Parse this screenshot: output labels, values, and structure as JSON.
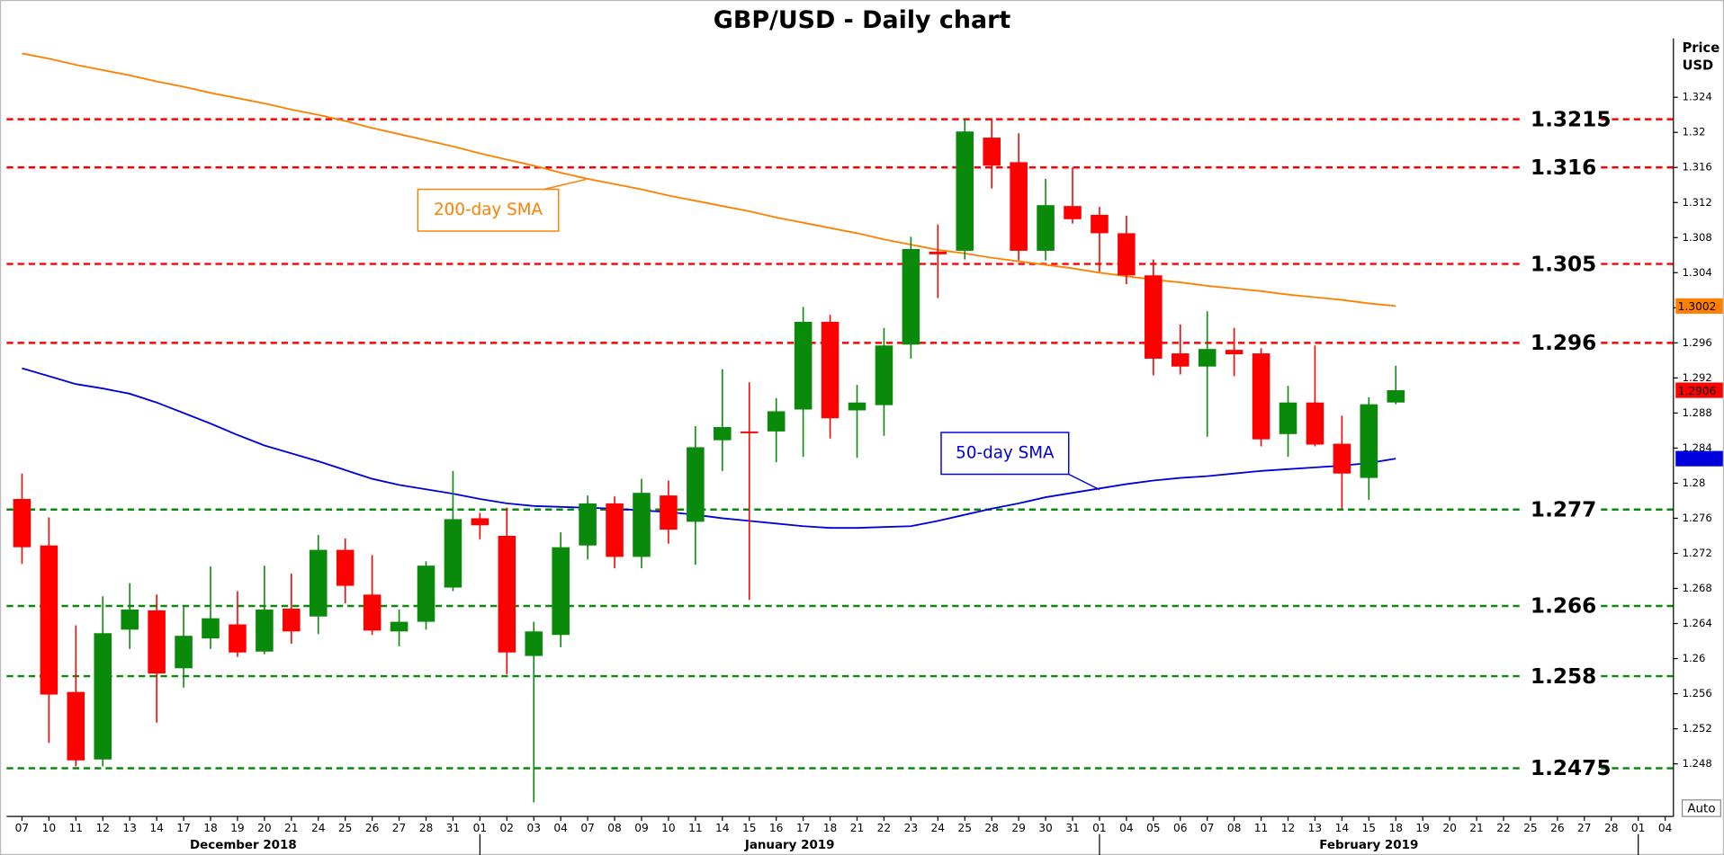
{
  "chart_data": {
    "type": "candlestick",
    "title": "GBP/USD - Daily chart",
    "ylabel": [
      "Price",
      "USD"
    ],
    "categories": [
      "07",
      "10",
      "11",
      "12",
      "13",
      "14",
      "17",
      "18",
      "19",
      "20",
      "21",
      "24",
      "25",
      "26",
      "27",
      "28",
      "31",
      "01",
      "02",
      "03",
      "04",
      "07",
      "08",
      "09",
      "10",
      "11",
      "14",
      "15",
      "16",
      "17",
      "18",
      "21",
      "22",
      "23",
      "24",
      "25",
      "28",
      "29",
      "30",
      "31",
      "01",
      "04",
      "05",
      "06",
      "07",
      "08",
      "11",
      "12",
      "13",
      "14",
      "15",
      "18",
      "19",
      "20",
      "21",
      "22",
      "25",
      "26",
      "27",
      "28",
      "01",
      "04"
    ],
    "months": [
      "December 2018",
      "January 2019",
      "February 2019"
    ],
    "open": [
      1.2782,
      1.2729,
      1.2562,
      1.2485,
      1.2633,
      1.2655,
      1.2589,
      1.2623,
      1.2639,
      1.2608,
      1.2657,
      1.2648,
      1.2724,
      1.2673,
      1.2631,
      1.2642,
      1.2681,
      1.276,
      1.274,
      1.2603,
      1.2627,
      1.2729,
      1.2777,
      1.2716,
      1.2786,
      1.2756,
      1.2849,
      1.2859,
      1.2859,
      1.2884,
      1.2984,
      1.2883,
      1.2889,
      1.2958,
      1.3064,
      1.3065,
      1.3194,
      1.3166,
      1.3065,
      1.3116,
      1.3106,
      1.3085,
      1.3037,
      1.2948,
      1.2933,
      1.2952,
      1.2948,
      1.2856,
      1.2892,
      1.2845,
      1.2806,
      1.2892,
      null,
      null,
      null,
      null,
      null,
      null,
      null,
      null,
      null,
      null
    ],
    "high": [
      1.2811,
      1.2761,
      1.2638,
      1.2671,
      1.2686,
      1.2673,
      1.2661,
      1.2705,
      1.2677,
      1.2706,
      1.2697,
      1.2741,
      1.2737,
      1.2718,
      1.2656,
      1.2711,
      1.2814,
      1.2766,
      1.2772,
      1.2642,
      1.2744,
      1.2786,
      1.2785,
      1.2805,
      1.2803,
      1.2865,
      1.293,
      1.2915,
      1.2897,
      1.3001,
      1.2992,
      1.2912,
      1.2977,
      1.3081,
      1.3095,
      1.3216,
      1.3216,
      1.3199,
      1.3147,
      1.316,
      1.3115,
      1.3105,
      1.3055,
      1.2981,
      1.2996,
      1.2977,
      1.2954,
      1.2911,
      1.2957,
      1.2877,
      1.2898,
      1.2934,
      null,
      null,
      null,
      null,
      null,
      null,
      null,
      null,
      null,
      null
    ],
    "low": [
      1.2708,
      1.2504,
      1.2477,
      1.2477,
      1.2611,
      1.2527,
      1.2567,
      1.2611,
      1.2602,
      1.2605,
      1.2617,
      1.2628,
      1.2663,
      1.2627,
      1.2614,
      1.2633,
      1.2677,
      1.2736,
      1.2582,
      1.2436,
      1.2613,
      1.2713,
      1.2703,
      1.2703,
      1.2731,
      1.2707,
      1.2814,
      1.2667,
      1.2824,
      1.283,
      1.2851,
      1.2829,
      1.2854,
      1.2942,
      1.3011,
      1.3055,
      1.3136,
      1.3054,
      1.3054,
      1.3096,
      1.3041,
      1.3027,
      1.2923,
      1.2924,
      1.2853,
      1.2922,
      1.2842,
      1.283,
      1.2842,
      1.2771,
      1.2781,
      1.289,
      null,
      null,
      null,
      null,
      null,
      null,
      null,
      null,
      null,
      null
    ],
    "close": [
      1.2727,
      1.2559,
      1.2484,
      1.2629,
      1.2656,
      1.2583,
      1.2626,
      1.2646,
      1.2607,
      1.2656,
      1.2631,
      1.2724,
      1.2683,
      1.2632,
      1.2642,
      1.2706,
      1.2759,
      1.2752,
      1.2607,
      1.2631,
      1.2727,
      1.2777,
      1.2716,
      1.2789,
      1.2747,
      1.2841,
      1.2864,
      1.2857,
      1.2882,
      1.2984,
      1.2874,
      1.2892,
      1.2957,
      1.3067,
      1.3061,
      1.3201,
      1.3162,
      1.3065,
      1.3117,
      1.3101,
      1.3085,
      1.3037,
      1.2942,
      1.2933,
      1.2953,
      1.2947,
      1.285,
      1.2892,
      1.2844,
      1.2811,
      1.289,
      1.2906,
      null,
      null,
      null,
      null,
      null,
      null,
      null,
      null,
      null,
      null
    ],
    "up_color": "#0a8a0a",
    "down_color": "#ff0000",
    "lines": [
      {
        "name": "200-day SMA",
        "color": "#ff8000",
        "values": [
          1.329,
          1.3284,
          1.3277,
          1.3271,
          1.3265,
          1.3258,
          1.3252,
          1.3245,
          1.3239,
          1.3233,
          1.3226,
          1.322,
          1.3213,
          1.3205,
          1.3198,
          1.3191,
          1.3184,
          1.3176,
          1.3169,
          1.3162,
          1.3154,
          1.3147,
          1.3141,
          1.3135,
          1.3128,
          1.3122,
          1.3116,
          1.311,
          1.3103,
          1.3097,
          1.3091,
          1.3085,
          1.3078,
          1.3072,
          1.3066,
          1.3062,
          1.3057,
          1.3053,
          1.3049,
          1.3045,
          1.304,
          1.3036,
          1.3032,
          1.3029,
          1.3025,
          1.3022,
          1.3019,
          1.3015,
          1.3012,
          1.3009,
          1.3005,
          1.3002,
          null,
          null,
          null,
          null,
          null,
          null,
          null,
          null,
          null,
          null
        ]
      },
      {
        "name": "50-day SMA",
        "color": "#0000dd",
        "values": [
          1.2931,
          1.2922,
          1.2913,
          1.2908,
          1.2902,
          1.2892,
          1.288,
          1.2868,
          1.2855,
          1.2843,
          1.2834,
          1.2825,
          1.2815,
          1.2805,
          1.2798,
          1.2793,
          1.2788,
          1.2782,
          1.2777,
          1.2774,
          1.2773,
          1.2772,
          1.2771,
          1.2769,
          1.2767,
          1.2764,
          1.276,
          1.2757,
          1.2754,
          1.2751,
          1.2749,
          1.2749,
          1.275,
          1.2751,
          1.2757,
          1.2764,
          1.2771,
          1.2777,
          1.2784,
          1.2789,
          1.2794,
          1.2799,
          1.2803,
          1.2806,
          1.2808,
          1.2811,
          1.2814,
          1.2816,
          1.2818,
          1.282,
          1.2823,
          1.2828,
          null,
          null,
          null,
          null,
          null,
          null,
          null,
          null,
          null,
          null
        ]
      }
    ],
    "resistance_levels": [
      1.3215,
      1.316,
      1.305,
      1.296
    ],
    "resistance_color": "#ff0000",
    "support_levels": [
      1.277,
      1.266,
      1.258,
      1.2475
    ],
    "support_color": "#0a8a0a",
    "ylim": [
      1.242,
      1.3307
    ],
    "yticks": [
      1.248,
      1.252,
      1.256,
      1.26,
      1.264,
      1.268,
      1.272,
      1.276,
      1.28,
      1.284,
      1.288,
      1.292,
      1.296,
      1.3,
      1.304,
      1.308,
      1.312,
      1.316,
      1.32,
      1.324
    ],
    "grid": false,
    "button": "Auto"
  }
}
